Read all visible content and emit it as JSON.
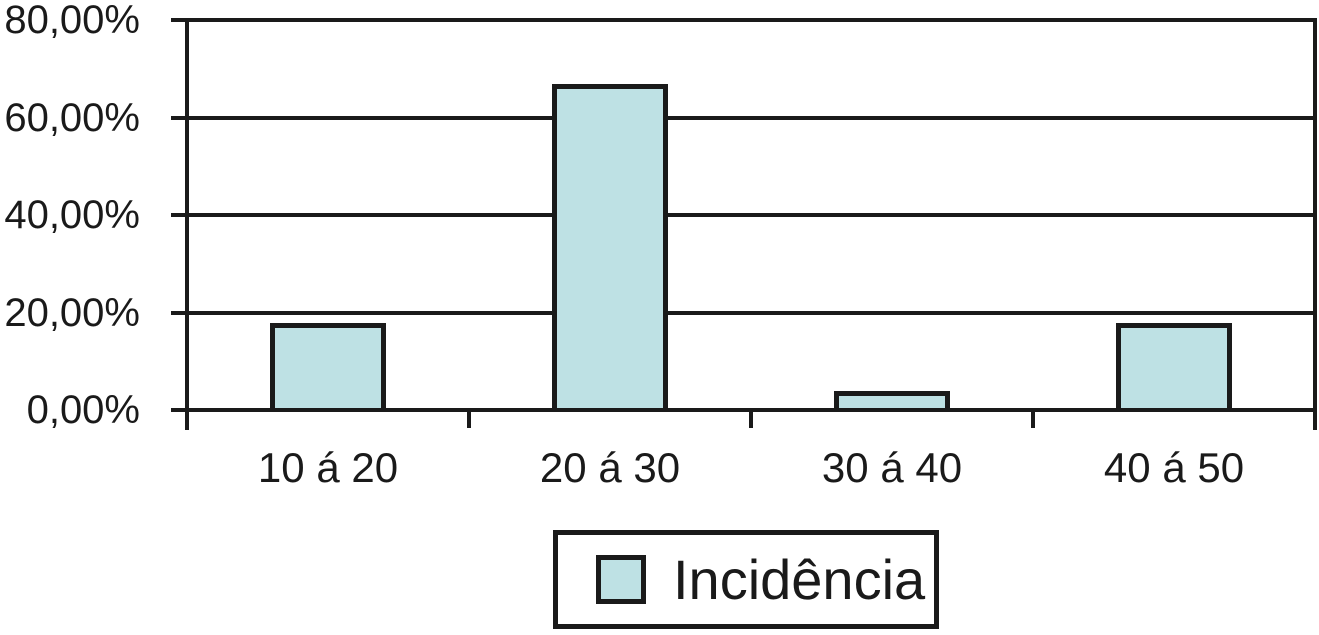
{
  "chart_data": {
    "type": "bar",
    "title": "",
    "xlabel": "",
    "ylabel": "",
    "categories": [
      "10 á 20",
      "20 á 30",
      "30 á 40",
      "40 á 50"
    ],
    "series": [
      {
        "name": "Incidência",
        "values": [
          17.5,
          66.5,
          3.5,
          17.5
        ]
      }
    ],
    "ylim": [
      0,
      80
    ],
    "yticks": {
      "values": [
        0,
        20,
        40,
        60,
        80
      ],
      "labels": [
        "0,00%",
        "20,00%",
        "40,00%",
        "60,00%",
        "80,00%"
      ]
    },
    "grid": true,
    "legend": {
      "position": "bottom",
      "entries": [
        "Incidência"
      ]
    },
    "colors": {
      "bar_fill": "#bee1e4",
      "line": "#1a1a1a",
      "background": "#ffffff"
    }
  }
}
